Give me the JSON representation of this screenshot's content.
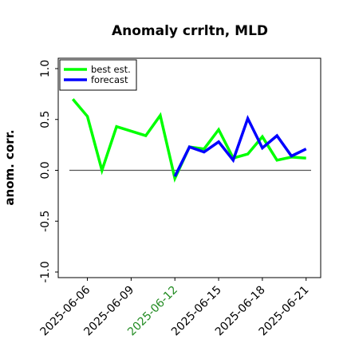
{
  "chart_data": {
    "type": "line",
    "title": "Anomaly crrltn, MLD",
    "xlabel": "",
    "ylabel": "anom. corr.",
    "ylim": [
      -1.0,
      1.0
    ],
    "yticks": [
      "-1.0",
      "-0.5",
      "0.0",
      "0.5",
      "1.0"
    ],
    "ytick_values": [
      -1.0,
      -0.5,
      0.0,
      0.5,
      1.0
    ],
    "xlim": [
      "2025-06-04",
      "2025-06-22"
    ],
    "xticks": [
      "2025-06-06",
      "2025-06-09",
      "2025-06-12",
      "2025-06-15",
      "2025-06-18",
      "2025-06-21"
    ],
    "highlighted_xtick": "2025-06-12",
    "highlight_color": "#228b22",
    "zero_line": true,
    "grid": false,
    "legend": {
      "placement": "top-left"
    },
    "series": [
      {
        "name": "best est.",
        "color": "#00ff00",
        "x": [
          "2025-06-05",
          "2025-06-06",
          "2025-06-07",
          "2025-06-08",
          "2025-06-10",
          "2025-06-11",
          "2025-06-12",
          "2025-06-13",
          "2025-06-14",
          "2025-06-15",
          "2025-06-16",
          "2025-06-17",
          "2025-06-18",
          "2025-06-19",
          "2025-06-20",
          "2025-06-21"
        ],
        "values": [
          0.7,
          0.53,
          0.0,
          0.43,
          0.34,
          0.54,
          -0.08,
          0.23,
          0.21,
          0.4,
          0.12,
          0.16,
          0.33,
          0.1,
          0.13,
          0.12
        ]
      },
      {
        "name": "forecast",
        "color": "#0000ff",
        "x": [
          "2025-06-12",
          "2025-06-13",
          "2025-06-14",
          "2025-06-15",
          "2025-06-16",
          "2025-06-17",
          "2025-06-18",
          "2025-06-19",
          "2025-06-20",
          "2025-06-21"
        ],
        "values": [
          -0.06,
          0.23,
          0.18,
          0.28,
          0.1,
          0.51,
          0.22,
          0.34,
          0.14,
          0.21
        ]
      }
    ]
  }
}
